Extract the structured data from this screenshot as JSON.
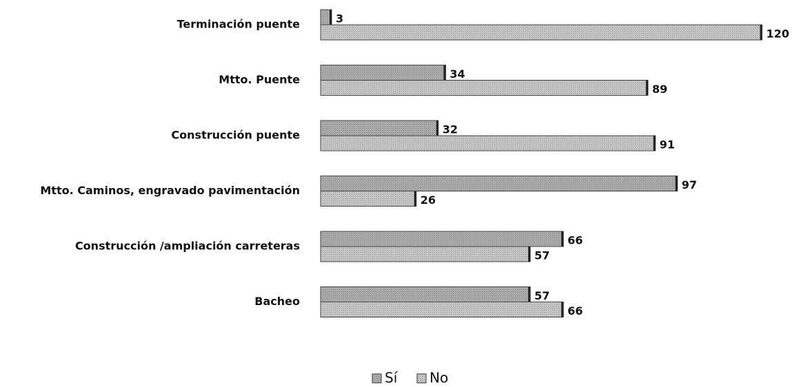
{
  "chart_data": {
    "type": "hbar",
    "categories": [
      "Terminación puente",
      "Mtto. Puente",
      "Construcción puente",
      "Mtto. Caminos, engravado pavimentación",
      "Construcción /ampliación carreteras",
      "Bacheo"
    ],
    "series": [
      {
        "name": "Sí",
        "color": "#a9a9a9",
        "values": [
          3,
          34,
          32,
          97,
          66,
          57
        ]
      },
      {
        "name": "No",
        "color": "#c4c4c4",
        "values": [
          120,
          89,
          91,
          26,
          57,
          66
        ]
      }
    ],
    "xlim": [
      0,
      125
    ],
    "legend": "bottom"
  }
}
